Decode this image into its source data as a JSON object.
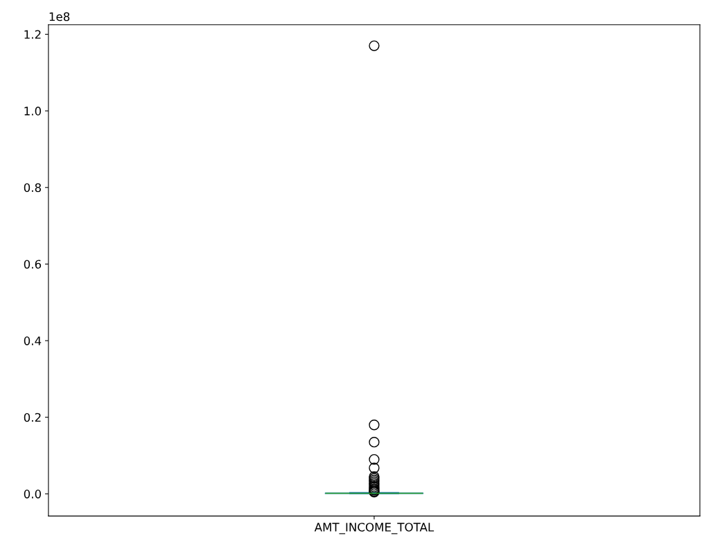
{
  "chart_data": {
    "type": "box",
    "categories": [
      "AMT_INCOME_TOTAL"
    ],
    "series": [
      {
        "color": "#1f77b4",
        "boxes": [
          {
            "low": 0.0003,
            "q1": 0.0011,
            "median": 0.0015,
            "q3": 0.002,
            "high": 0.0034,
            "outliers": [
              1.17,
              0.18,
              0.135,
              0.09,
              0.0675,
              0.045,
              0.0405,
              0.036,
              0.0315,
              0.027,
              0.0225,
              0.018,
              0.0135,
              0.01,
              0.007,
              0.0045
            ]
          }
        ]
      }
    ],
    "ylim": [
      -0.058,
      1.225
    ],
    "yticks": [
      {
        "value": 0,
        "label": "0.0"
      },
      0.2,
      0.4,
      0.6,
      0.8,
      {
        "value": 1,
        "label": "1.0"
      },
      1.2
    ],
    "ylabel": "1e8",
    "grid": false
  }
}
